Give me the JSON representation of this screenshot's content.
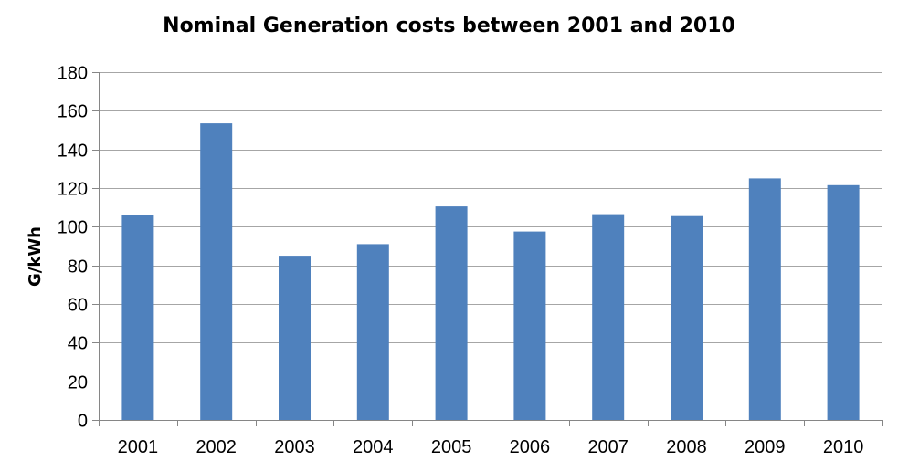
{
  "chart_data": {
    "type": "bar",
    "title": "Nominal Generation costs between 2001 and 2010",
    "xlabel": "",
    "ylabel": "G/kWh",
    "categories": [
      "2001",
      "2002",
      "2003",
      "2004",
      "2005",
      "2006",
      "2007",
      "2008",
      "2009",
      "2010"
    ],
    "values": [
      106,
      153.5,
      85,
      91,
      110.5,
      97.5,
      106.5,
      105.5,
      125,
      121.5
    ],
    "ylim": [
      0,
      180
    ],
    "yticks": [
      "0",
      "20",
      "40",
      "60",
      "80",
      "100",
      "120",
      "140",
      "160",
      "180"
    ],
    "grid": true,
    "legend": "none",
    "colors": {
      "bar": "#4f81bd",
      "grid": "#a6a6a6",
      "axis": "#868686"
    }
  }
}
